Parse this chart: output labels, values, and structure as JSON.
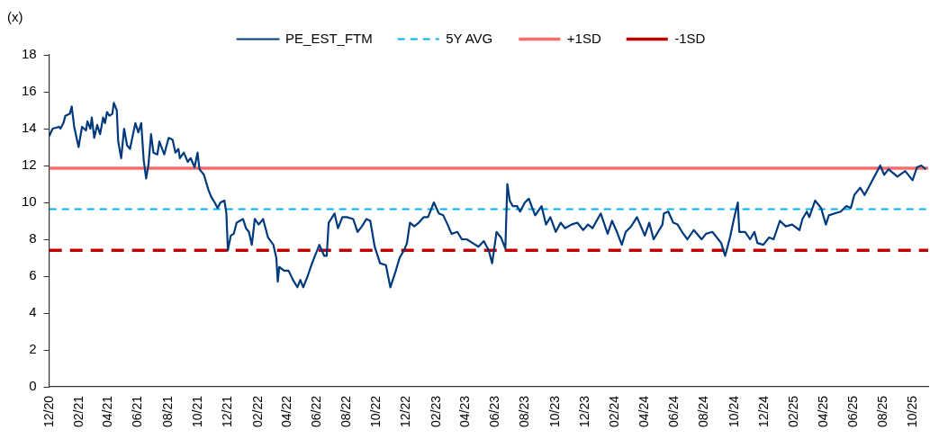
{
  "chart_data": {
    "type": "line",
    "ylabel": "(x)",
    "legend": "top",
    "grid": false,
    "marker": "none",
    "xlim": [
      "2020-12-01",
      "2025-11-01"
    ],
    "xticks": [
      {
        "value": "2020-12-01",
        "label": "12/20"
      },
      {
        "value": "2021-02-01",
        "label": "02/21"
      },
      {
        "value": "2021-04-01",
        "label": "04/21"
      },
      {
        "value": "2021-06-01",
        "label": "06/21"
      },
      {
        "value": "2021-08-01",
        "label": "08/21"
      },
      {
        "value": "2021-10-01",
        "label": "10/21"
      },
      {
        "value": "2021-12-01",
        "label": "12/21"
      },
      {
        "value": "2022-02-01",
        "label": "02/22"
      },
      {
        "value": "2022-04-01",
        "label": "04/22"
      },
      {
        "value": "2022-06-01",
        "label": "06/22"
      },
      {
        "value": "2022-08-01",
        "label": "08/22"
      },
      {
        "value": "2022-10-01",
        "label": "10/22"
      },
      {
        "value": "2022-12-01",
        "label": "12/22"
      },
      {
        "value": "2023-02-01",
        "label": "02/23"
      },
      {
        "value": "2023-04-01",
        "label": "04/23"
      },
      {
        "value": "2023-06-01",
        "label": "06/23"
      },
      {
        "value": "2023-08-01",
        "label": "08/23"
      },
      {
        "value": "2023-10-01",
        "label": "10/23"
      },
      {
        "value": "2023-12-01",
        "label": "12/23"
      },
      {
        "value": "2024-02-01",
        "label": "02/24"
      },
      {
        "value": "2024-04-01",
        "label": "04/24"
      },
      {
        "value": "2024-06-01",
        "label": "06/24"
      },
      {
        "value": "2024-08-01",
        "label": "08/24"
      },
      {
        "value": "2024-10-01",
        "label": "10/24"
      },
      {
        "value": "2024-12-01",
        "label": "12/24"
      },
      {
        "value": "2025-02-01",
        "label": "02/25"
      },
      {
        "value": "2025-04-01",
        "label": "04/25"
      },
      {
        "value": "2025-06-01",
        "label": "06/25"
      },
      {
        "value": "2025-08-01",
        "label": "08/25"
      },
      {
        "value": "2025-10-01",
        "label": "10/25"
      }
    ],
    "ylim": [
      0,
      18
    ],
    "yticks": [
      0,
      2,
      4,
      6,
      8,
      10,
      12,
      14,
      16,
      18
    ],
    "x": [
      "2020-12-01",
      "2020-12-08",
      "2020-12-21",
      "2020-12-24",
      "2020-12-30",
      "2021-01-03",
      "2021-01-12",
      "2021-01-16",
      "2021-01-21",
      "2021-01-30",
      "2021-02-06",
      "2021-02-14",
      "2021-02-17",
      "2021-02-23",
      "2021-02-26",
      "2021-03-03",
      "2021-03-09",
      "2021-03-15",
      "2021-03-21",
      "2021-03-25",
      "2021-03-29",
      "2021-04-03",
      "2021-04-09",
      "2021-04-12",
      "2021-04-18",
      "2021-04-21",
      "2021-04-27",
      "2021-05-03",
      "2021-05-09",
      "2021-05-15",
      "2021-05-26",
      "2021-06-01",
      "2021-06-07",
      "2021-06-12",
      "2021-06-17",
      "2021-06-22",
      "2021-06-27",
      "2021-07-02",
      "2021-07-10",
      "2021-07-14",
      "2021-07-24",
      "2021-08-02",
      "2021-08-10",
      "2021-08-16",
      "2021-08-22",
      "2021-08-25",
      "2021-09-02",
      "2021-09-10",
      "2021-09-16",
      "2021-09-24",
      "2021-09-30",
      "2021-10-04",
      "2021-10-13",
      "2021-10-22",
      "2021-10-28",
      "2021-11-04",
      "2021-11-10",
      "2021-11-16",
      "2021-11-24",
      "2021-11-28",
      "2021-12-01",
      "2021-12-07",
      "2021-12-13",
      "2021-12-19",
      "2022-01-01",
      "2022-01-07",
      "2022-01-13",
      "2022-01-19",
      "2022-01-25",
      "2022-02-02",
      "2022-02-11",
      "2022-02-21",
      "2022-03-04",
      "2022-03-10",
      "2022-03-13",
      "2022-03-16",
      "2022-03-26",
      "2022-04-04",
      "2022-04-13",
      "2022-04-22",
      "2022-04-28",
      "2022-05-04",
      "2022-05-13",
      "2022-05-22",
      "2022-05-28",
      "2022-06-06",
      "2022-06-16",
      "2022-06-21",
      "2022-06-25",
      "2022-06-30",
      "2022-07-07",
      "2022-07-14",
      "2022-07-23",
      "2022-08-01",
      "2022-08-14",
      "2022-08-23",
      "2022-09-01",
      "2022-09-10",
      "2022-09-18",
      "2022-09-27",
      "2022-10-08",
      "2022-10-20",
      "2022-10-29",
      "2022-11-08",
      "2022-11-17",
      "2022-11-26",
      "2022-12-02",
      "2022-12-08",
      "2022-12-17",
      "2022-12-26",
      "2023-01-05",
      "2023-01-14",
      "2023-01-26",
      "2023-02-05",
      "2023-02-14",
      "2023-02-23",
      "2023-03-03",
      "2023-03-15",
      "2023-03-24",
      "2023-04-03",
      "2023-04-15",
      "2023-04-27",
      "2023-05-08",
      "2023-05-18",
      "2023-05-25",
      "2023-06-03",
      "2023-06-12",
      "2023-06-21",
      "2023-06-25",
      "2023-06-30",
      "2023-07-06",
      "2023-07-15",
      "2023-07-21",
      "2023-07-31",
      "2023-08-08",
      "2023-08-15",
      "2023-08-21",
      "2023-09-03",
      "2023-09-12",
      "2023-09-21",
      "2023-10-02",
      "2023-10-12",
      "2023-10-21",
      "2023-11-03",
      "2023-11-15",
      "2023-11-27",
      "2023-12-07",
      "2023-12-16",
      "2024-01-02",
      "2024-01-16",
      "2024-01-25",
      "2024-02-04",
      "2024-02-14",
      "2024-02-22",
      "2024-03-04",
      "2024-03-16",
      "2024-04-01",
      "2024-04-10",
      "2024-04-19",
      "2024-05-07",
      "2024-05-10",
      "2024-05-19",
      "2024-05-29",
      "2024-06-07",
      "2024-06-16",
      "2024-06-27",
      "2024-07-10",
      "2024-07-26",
      "2024-08-04",
      "2024-08-17",
      "2024-08-29",
      "2024-09-04",
      "2024-09-12",
      "2024-09-22",
      "2024-09-30",
      "2024-10-08",
      "2024-10-11",
      "2024-10-23",
      "2024-11-02",
      "2024-11-11",
      "2024-11-17",
      "2024-11-29",
      "2024-12-11",
      "2024-12-20",
      "2025-01-02",
      "2025-01-14",
      "2025-01-27",
      "2025-02-11",
      "2025-02-17",
      "2025-02-26",
      "2025-03-03",
      "2025-03-15",
      "2025-03-27",
      "2025-04-06",
      "2025-04-12",
      "2025-04-24",
      "2025-05-06",
      "2025-05-18",
      "2025-05-27",
      "2025-06-03",
      "2025-06-15",
      "2025-06-24",
      "2025-07-06",
      "2025-07-18",
      "2025-07-26",
      "2025-08-03",
      "2025-08-12",
      "2025-08-30",
      "2025-09-15",
      "2025-09-30",
      "2025-10-09",
      "2025-10-18",
      "2025-10-27"
    ],
    "series": [
      {
        "name": "PE_EST_FTM",
        "color": "#003a7d",
        "values": [
          13.6,
          14.0,
          14.1,
          14.0,
          14.3,
          14.7,
          14.8,
          15.2,
          14.1,
          13.0,
          14.1,
          13.9,
          14.4,
          14.0,
          14.6,
          13.5,
          14.2,
          13.7,
          14.6,
          14.3,
          14.9,
          14.7,
          14.8,
          15.4,
          15.0,
          13.3,
          12.4,
          14.0,
          13.1,
          12.9,
          14.3,
          13.8,
          14.3,
          12.3,
          11.3,
          12.1,
          13.7,
          12.7,
          12.6,
          13.3,
          12.6,
          13.5,
          13.4,
          12.7,
          12.9,
          12.4,
          12.7,
          12.2,
          12.4,
          11.9,
          12.7,
          11.8,
          11.5,
          10.7,
          10.3,
          10.0,
          9.7,
          10.0,
          10.1,
          9.4,
          7.4,
          8.2,
          8.3,
          8.9,
          9.1,
          8.6,
          8.4,
          7.7,
          9.1,
          8.8,
          9.1,
          8.1,
          7.7,
          7.0,
          5.7,
          6.5,
          6.3,
          6.3,
          5.8,
          5.4,
          5.8,
          5.4,
          6.0,
          6.7,
          7.1,
          7.7,
          7.1,
          7.1,
          8.9,
          9.1,
          9.4,
          8.6,
          9.2,
          9.2,
          9.1,
          8.4,
          8.7,
          9.1,
          9.0,
          7.6,
          6.7,
          6.6,
          5.4,
          6.2,
          7.0,
          7.4,
          7.8,
          8.9,
          8.7,
          8.9,
          9.2,
          9.2,
          10.0,
          9.4,
          9.3,
          8.8,
          8.3,
          8.4,
          8.0,
          8.0,
          7.8,
          7.6,
          7.9,
          7.4,
          6.7,
          8.4,
          8.1,
          7.5,
          11.0,
          10.1,
          9.8,
          9.8,
          9.5,
          10.0,
          10.2,
          9.7,
          9.3,
          9.8,
          8.8,
          9.2,
          8.4,
          8.9,
          8.6,
          8.8,
          8.9,
          8.5,
          8.8,
          8.6,
          9.4,
          8.3,
          9.0,
          8.4,
          7.7,
          8.4,
          8.7,
          9.2,
          8.2,
          8.9,
          8.0,
          8.8,
          9.4,
          9.5,
          8.9,
          8.8,
          8.4,
          8.0,
          8.5,
          8.0,
          8.3,
          8.4,
          8.0,
          7.8,
          7.1,
          8.1,
          9.1,
          10.0,
          8.4,
          8.4,
          8.0,
          8.4,
          7.8,
          7.7,
          8.1,
          8.0,
          9.0,
          8.7,
          8.8,
          8.5,
          9.1,
          9.5,
          9.2,
          10.1,
          9.7,
          8.8,
          9.3,
          9.4,
          9.5,
          9.8,
          9.7,
          10.4,
          10.8,
          10.4,
          11.0,
          11.6,
          12.0,
          11.5,
          11.8,
          11.4,
          11.7,
          11.2,
          11.9,
          12.0,
          11.8
        ]
      }
    ],
    "ref_lines": [
      {
        "axis": "y",
        "value": 9.63,
        "label": "5Y AVG",
        "color": "#00b0f0",
        "line_style": "dashed"
      },
      {
        "axis": "y",
        "value": 11.85,
        "label": "+1SD",
        "color": "#ff6b6b",
        "line_style": "solid"
      },
      {
        "axis": "y",
        "value": 7.4,
        "label": "-1SD",
        "color": "#c00000",
        "line_style": "dashed"
      }
    ]
  }
}
